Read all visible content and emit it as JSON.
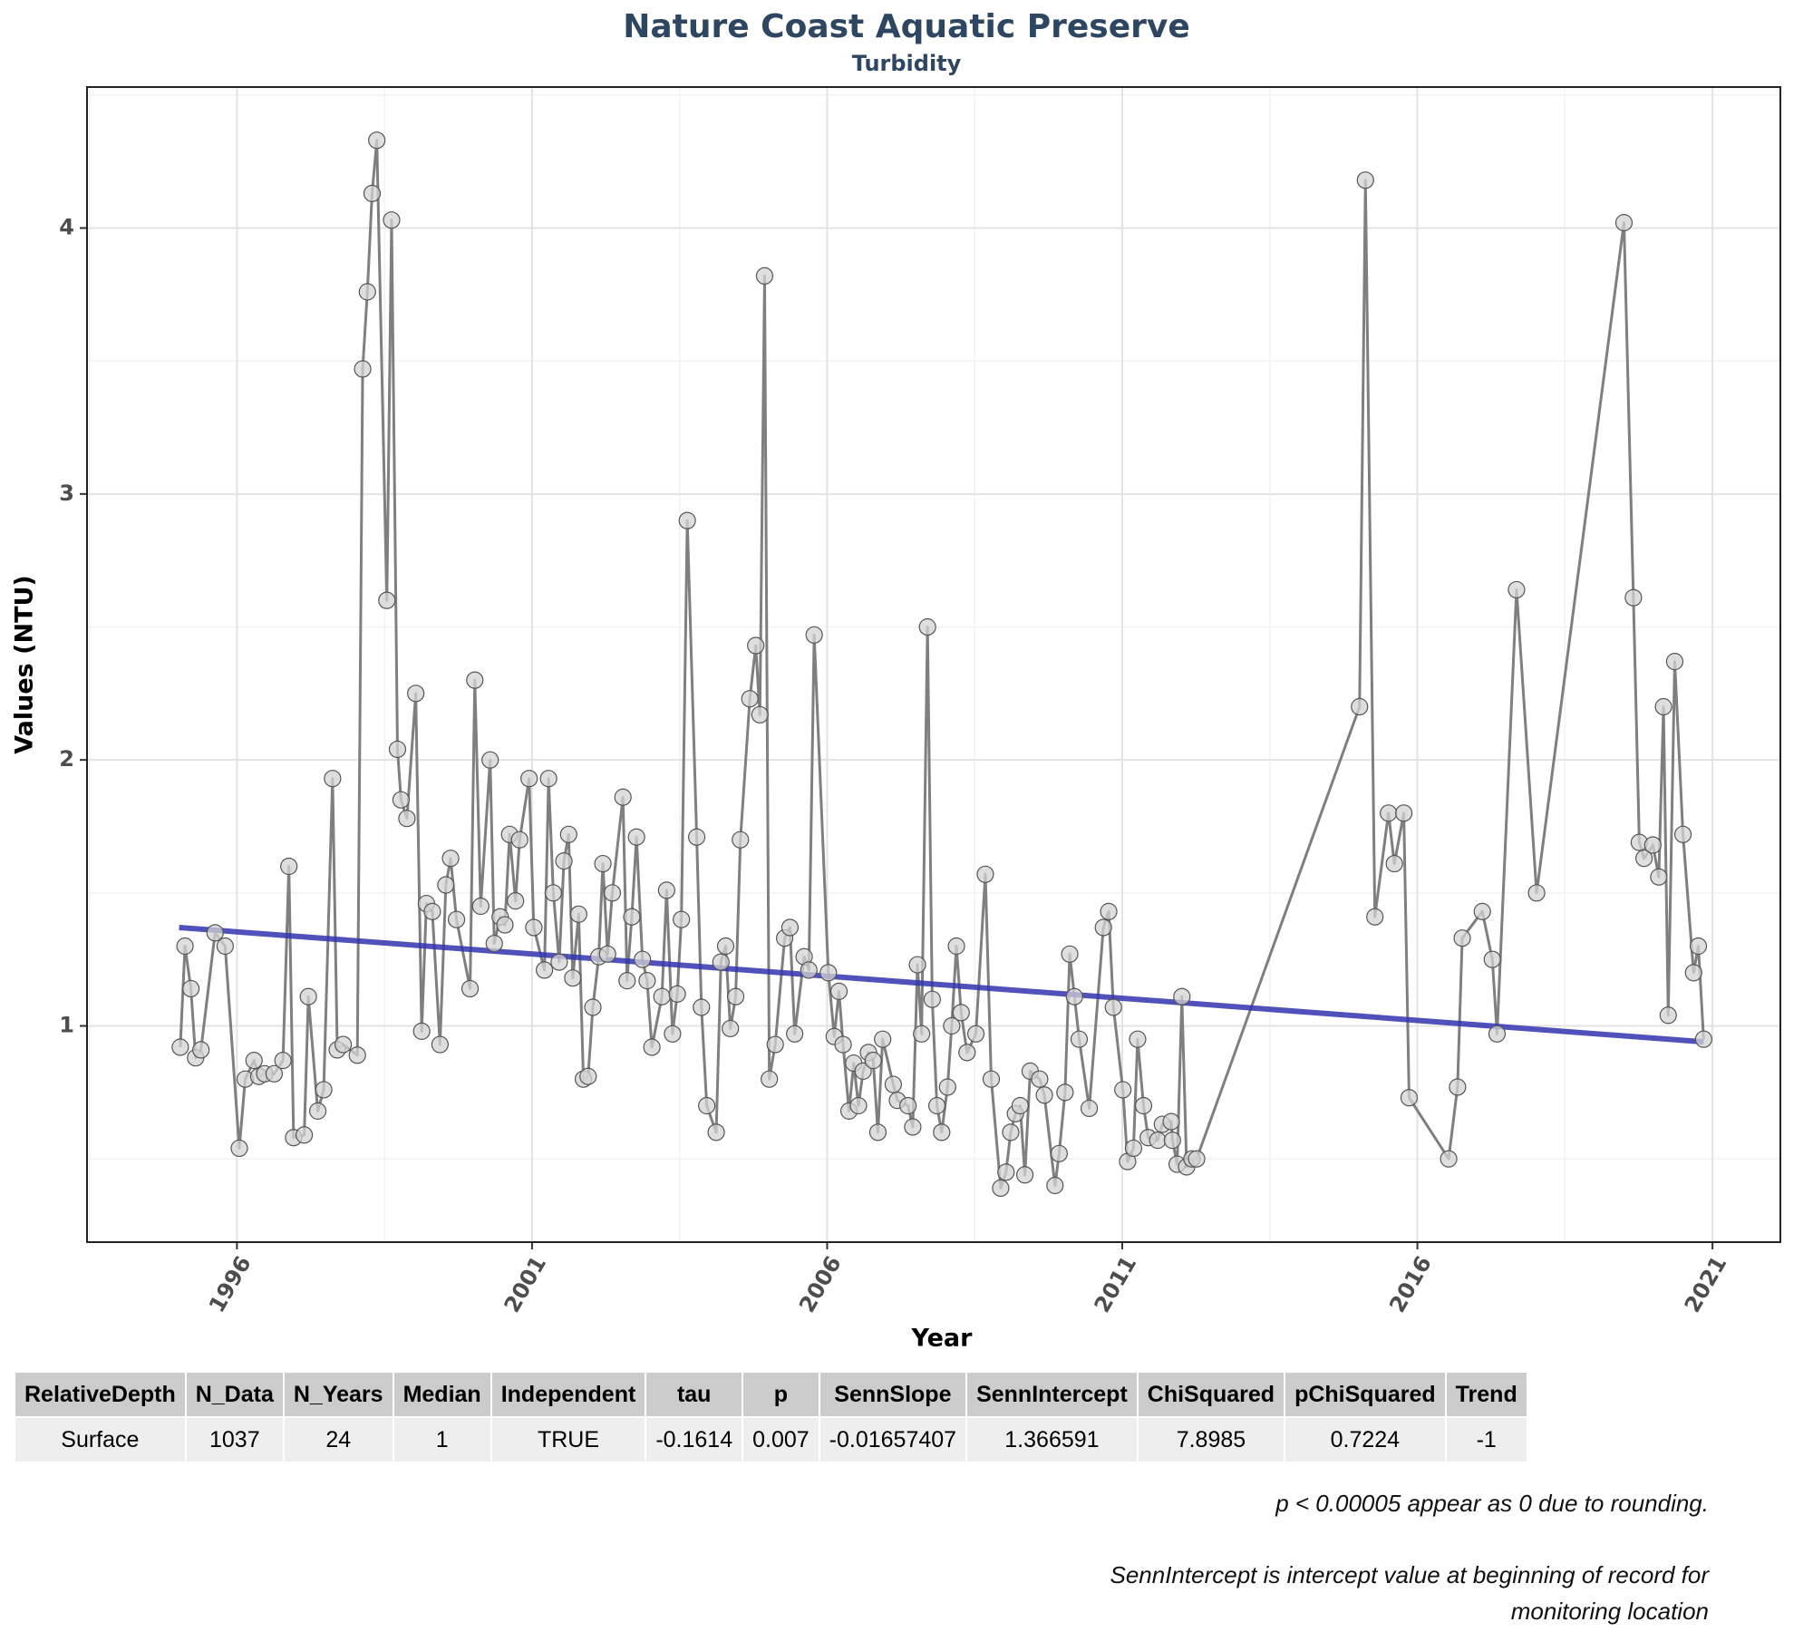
{
  "chart_data": {
    "type": "line",
    "title": "Nature Coast Aquatic Preserve",
    "subtitle": "Turbidity",
    "x_label": "Year",
    "y_label": "Values (NTU)",
    "xlim": [
      1993.46,
      2022.15
    ],
    "ylim": [
      0.187,
      4.53
    ],
    "xticks": [
      1996,
      2001,
      2006,
      2011,
      2016,
      2021
    ],
    "yticks": [
      1,
      2,
      3,
      4
    ],
    "grid": true,
    "series": [
      {
        "color": "#7f7f7f",
        "marker_color": "#d3d3d3",
        "x": [
          1995.04,
          1995.12,
          1995.22,
          1995.3,
          1995.39,
          1995.63,
          1995.8,
          1996.04,
          1996.14,
          1996.29,
          1996.37,
          1996.47,
          1996.63,
          1996.78,
          1996.88,
          1996.96,
          1997.14,
          1997.21,
          1997.37,
          1997.47,
          1997.62,
          1997.7,
          1997.8,
          1998.04,
          1998.13,
          1998.21,
          1998.29,
          1998.37,
          1998.54,
          1998.62,
          1998.72,
          1998.78,
          1998.88,
          1999.03,
          1999.13,
          1999.21,
          1999.31,
          1999.44,
          1999.54,
          1999.62,
          1999.72,
          1999.95,
          2000.03,
          2000.13,
          2000.29,
          2000.36,
          2000.46,
          2000.54,
          2000.62,
          2000.72,
          2000.79,
          2000.95,
          2001.03,
          2001.21,
          2001.28,
          2001.36,
          2001.46,
          2001.54,
          2001.62,
          2001.69,
          2001.79,
          2001.87,
          2001.95,
          2002.03,
          2002.13,
          2002.2,
          2002.28,
          2002.36,
          2002.54,
          2002.61,
          2002.69,
          2002.77,
          2002.87,
          2002.95,
          2003.03,
          2003.2,
          2003.28,
          2003.38,
          2003.46,
          2003.53,
          2003.63,
          2003.79,
          2003.87,
          2003.96,
          2004.12,
          2004.2,
          2004.28,
          2004.36,
          2004.45,
          2004.53,
          2004.69,
          2004.79,
          2004.86,
          2004.94,
          2005.02,
          2005.12,
          2005.28,
          2005.37,
          2005.45,
          2005.61,
          2005.69,
          2005.78,
          2006.02,
          2006.12,
          2006.2,
          2006.27,
          2006.37,
          2006.45,
          2006.53,
          2006.61,
          2006.7,
          2006.78,
          2006.86,
          2006.94,
          2007.12,
          2007.19,
          2007.37,
          2007.45,
          2007.53,
          2007.6,
          2007.7,
          2007.78,
          2007.86,
          2007.94,
          2008.04,
          2008.11,
          2008.19,
          2008.27,
          2008.37,
          2008.52,
          2008.68,
          2008.78,
          2008.94,
          2009.03,
          2009.11,
          2009.19,
          2009.27,
          2009.35,
          2009.44,
          2009.6,
          2009.68,
          2009.86,
          2009.93,
          2010.03,
          2010.11,
          2010.19,
          2010.27,
          2010.44,
          2010.68,
          2010.77,
          2010.85,
          2011.01,
          2011.09,
          2011.19,
          2011.26,
          2011.36,
          2011.44,
          2011.6,
          2011.68,
          2011.83,
          2011.85,
          2011.93,
          2012.01,
          2012.09,
          2012.18,
          2012.26,
          2015.02,
          2015.12,
          2015.28,
          2015.51,
          2015.61,
          2015.77,
          2015.86,
          2016.53,
          2016.68,
          2016.76,
          2017.1,
          2017.27,
          2017.35,
          2017.68,
          2018.02,
          2019.5,
          2019.66,
          2019.76,
          2019.84,
          2019.99,
          2020.09,
          2020.17,
          2020.25,
          2020.36,
          2020.5,
          2020.68,
          2020.76,
          2020.85
        ],
        "values": [
          0.92,
          1.3,
          1.14,
          0.88,
          0.91,
          1.35,
          1.3,
          0.54,
          0.8,
          0.87,
          0.81,
          0.82,
          0.82,
          0.87,
          1.6,
          0.58,
          0.59,
          1.11,
          0.68,
          0.76,
          1.93,
          0.91,
          0.93,
          0.89,
          3.47,
          3.76,
          4.13,
          4.33,
          2.6,
          4.03,
          2.04,
          1.85,
          1.78,
          2.25,
          0.98,
          1.46,
          1.43,
          0.93,
          1.53,
          1.63,
          1.4,
          1.14,
          2.3,
          1.45,
          2.0,
          1.31,
          1.41,
          1.38,
          1.72,
          1.47,
          1.7,
          1.93,
          1.37,
          1.21,
          1.93,
          1.5,
          1.24,
          1.62,
          1.72,
          1.18,
          1.42,
          0.8,
          0.81,
          1.07,
          1.26,
          1.61,
          1.27,
          1.5,
          1.86,
          1.17,
          1.41,
          1.71,
          1.25,
          1.17,
          0.92,
          1.11,
          1.51,
          0.97,
          1.12,
          1.4,
          2.9,
          1.71,
          1.07,
          0.7,
          0.6,
          1.24,
          1.3,
          0.99,
          1.11,
          1.7,
          2.23,
          2.43,
          2.17,
          3.82,
          0.8,
          0.93,
          1.33,
          1.37,
          0.97,
          1.26,
          1.21,
          2.47,
          1.2,
          0.96,
          1.13,
          0.93,
          0.68,
          0.86,
          0.7,
          0.83,
          0.9,
          0.87,
          0.6,
          0.95,
          0.78,
          0.72,
          0.7,
          0.62,
          1.23,
          0.97,
          2.5,
          1.1,
          0.7,
          0.6,
          0.77,
          1.0,
          1.3,
          1.05,
          0.9,
          0.97,
          1.57,
          0.8,
          0.39,
          0.45,
          0.6,
          0.67,
          0.7,
          0.44,
          0.83,
          0.8,
          0.74,
          0.4,
          0.52,
          0.75,
          1.27,
          1.11,
          0.95,
          0.69,
          1.37,
          1.43,
          1.07,
          0.76,
          0.49,
          0.54,
          0.95,
          0.7,
          0.58,
          0.57,
          0.63,
          0.64,
          0.57,
          0.48,
          1.11,
          0.47,
          0.5,
          0.5,
          2.2,
          4.18,
          1.41,
          1.8,
          1.61,
          1.8,
          0.73,
          0.5,
          0.77,
          1.33,
          1.43,
          1.25,
          0.97,
          2.64,
          1.5,
          4.02,
          2.61,
          1.69,
          1.63,
          1.68,
          1.56,
          2.2,
          1.04,
          2.37,
          1.72,
          1.2,
          1.3,
          0.95
        ]
      },
      {
        "color": "#3333b0",
        "x": [
          1995.02,
          2020.85
        ],
        "values": [
          1.37,
          0.94
        ]
      }
    ]
  },
  "table": {
    "columns": [
      "RelativeDepth",
      "N_Data",
      "N_Years",
      "Median",
      "Independent",
      "tau",
      "p",
      "SennSlope",
      "SennIntercept",
      "ChiSquared",
      "pChiSquared",
      "Trend"
    ],
    "rows": [
      [
        "Surface",
        "1037",
        "24",
        "1",
        "TRUE",
        "-0.1614",
        "0.007",
        "-0.01657407",
        "1.366591",
        "7.8985",
        "0.7224",
        "-1"
      ]
    ]
  },
  "notes": [
    "p < 0.00005 appear as 0 due to rounding.",
    "SennIntercept is intercept value at beginning of record for monitoring location"
  ]
}
